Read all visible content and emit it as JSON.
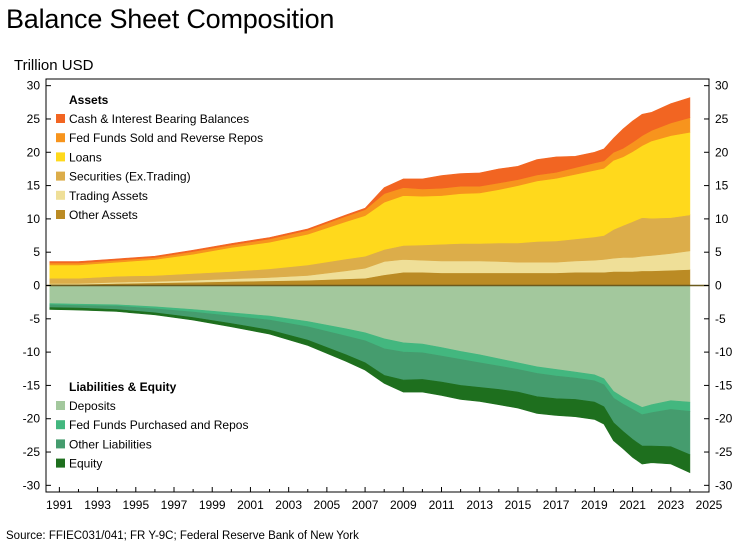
{
  "header": {
    "title": "Balance Sheet Composition",
    "units": "Trillion USD"
  },
  "footer": {
    "source": "Source: FFIEC031/041; FR Y-9C; Federal Reserve Bank of New York"
  },
  "colors": {
    "cash": "#f26522",
    "fed_funds_sold": "#f7941d",
    "loans": "#ffd91c",
    "securities": "#dcad4a",
    "trading": "#efdf98",
    "other_assets": "#bb8b24",
    "deposits": "#a3c89d",
    "fed_funds_purchased": "#43b77f",
    "other_liabilities": "#459c6e",
    "equity": "#1e6f1e"
  },
  "chart_data": {
    "type": "area",
    "stacked": true,
    "ylim": [
      -31,
      31
    ],
    "yticks": [
      30,
      25,
      20,
      15,
      10,
      5,
      0,
      -5,
      -10,
      -15,
      -20,
      -25,
      -30
    ],
    "xlim": [
      1990.3,
      2025
    ],
    "xticks": [
      "1991",
      "1993",
      "1995",
      "1997",
      "1999",
      "2001",
      "2003",
      "2005",
      "2007",
      "2009",
      "2011",
      "2013",
      "2015",
      "2017",
      "2019",
      "2021",
      "2023",
      "2025"
    ],
    "grid": false,
    "x": [
      1990.5,
      1992,
      1994,
      1996,
      1998,
      2000,
      2002,
      2004,
      2006,
      2007,
      2008,
      2009,
      2010,
      2011,
      2012,
      2013,
      2014,
      2015,
      2016,
      2017,
      2018,
      2019,
      2019.5,
      2020,
      2020.5,
      2021,
      2021.5,
      2022,
      2023,
      2024
    ],
    "legends": [
      {
        "heading": "Assets",
        "position": "top-left",
        "series": [
          "Cash & Interest Bearing Balances",
          "Fed Funds Sold and Reverse Repos",
          "Loans",
          "Securities (Ex.Trading)",
          "Trading Assets",
          "Other Assets"
        ]
      },
      {
        "heading": "Liabilities & Equity",
        "position": "bottom-left",
        "series": [
          "Deposits",
          "Fed Funds Purchased and Repos",
          "Other Liabilities",
          "Equity"
        ]
      }
    ],
    "assets": [
      {
        "name": "Other Assets",
        "color": "#bb8b24",
        "values": [
          0.2,
          0.2,
          0.3,
          0.4,
          0.5,
          0.6,
          0.7,
          0.8,
          1.0,
          1.1,
          1.6,
          2.0,
          2.0,
          1.9,
          1.9,
          1.9,
          1.9,
          1.9,
          1.9,
          1.9,
          2.0,
          2.0,
          2.0,
          2.1,
          2.1,
          2.1,
          2.2,
          2.2,
          2.3,
          2.4
        ]
      },
      {
        "name": "Trading Assets",
        "color": "#efdf98",
        "values": [
          0.1,
          0.1,
          0.2,
          0.2,
          0.3,
          0.4,
          0.5,
          0.7,
          1.2,
          1.5,
          2.0,
          1.9,
          1.8,
          1.8,
          1.8,
          1.8,
          1.7,
          1.6,
          1.6,
          1.6,
          1.7,
          1.8,
          1.9,
          2.0,
          2.1,
          2.1,
          2.2,
          2.3,
          2.5,
          2.8
        ]
      },
      {
        "name": "Securities (Ex.Trading)",
        "color": "#dcad4a",
        "values": [
          0.8,
          0.8,
          0.9,
          0.9,
          1.0,
          1.1,
          1.3,
          1.6,
          1.8,
          1.8,
          1.8,
          2.1,
          2.3,
          2.5,
          2.6,
          2.6,
          2.8,
          2.9,
          3.1,
          3.2,
          3.3,
          3.5,
          3.6,
          4.3,
          4.8,
          5.4,
          5.8,
          5.6,
          5.4,
          5.4
        ]
      },
      {
        "name": "Loans",
        "color": "#ffd91c",
        "values": [
          2.0,
          2.0,
          2.1,
          2.4,
          2.9,
          3.6,
          4.0,
          4.6,
          5.6,
          6.1,
          7.1,
          7.5,
          7.3,
          7.3,
          7.5,
          7.6,
          8.0,
          8.6,
          9.1,
          9.4,
          9.7,
          10.0,
          10.1,
          10.4,
          10.3,
          10.5,
          10.8,
          11.6,
          12.3,
          12.4
        ]
      },
      {
        "name": "Fed Funds Sold and Reverse Repos",
        "color": "#f7941d",
        "values": [
          0.3,
          0.3,
          0.3,
          0.3,
          0.4,
          0.4,
          0.5,
          0.6,
          0.8,
          0.9,
          1.3,
          1.2,
          1.1,
          1.1,
          1.1,
          1.0,
          1.0,
          0.9,
          0.9,
          0.9,
          1.0,
          1.1,
          1.1,
          1.2,
          1.3,
          1.4,
          1.5,
          1.6,
          1.9,
          2.2
        ]
      },
      {
        "name": "Cash & Interest Bearing Balances",
        "color": "#f26522",
        "values": [
          0.2,
          0.2,
          0.2,
          0.2,
          0.2,
          0.2,
          0.2,
          0.2,
          0.2,
          0.2,
          0.9,
          1.3,
          1.5,
          1.9,
          1.9,
          2.0,
          2.1,
          2.0,
          2.3,
          2.3,
          1.7,
          1.6,
          1.8,
          2.1,
          2.9,
          3.2,
          3.2,
          2.7,
          2.9,
          3.0
        ]
      }
    ],
    "liabilities": [
      {
        "name": "Deposits",
        "color": "#a3c89d",
        "values": [
          -2.7,
          -2.8,
          -2.9,
          -3.2,
          -3.6,
          -4.1,
          -4.6,
          -5.4,
          -6.5,
          -7.1,
          -8.0,
          -8.6,
          -8.8,
          -9.3,
          -9.9,
          -10.4,
          -11.0,
          -11.6,
          -12.2,
          -12.6,
          -13.0,
          -13.4,
          -14.0,
          -15.9,
          -16.8,
          -17.6,
          -18.3,
          -17.9,
          -17.3,
          -17.5
        ]
      },
      {
        "name": "Fed Funds Purchased and Repos",
        "color": "#43b77f",
        "values": [
          -0.2,
          -0.2,
          -0.2,
          -0.3,
          -0.4,
          -0.5,
          -0.6,
          -0.8,
          -1.1,
          -1.2,
          -1.5,
          -1.4,
          -1.3,
          -1.3,
          -1.2,
          -1.2,
          -1.1,
          -1.0,
          -1.0,
          -1.0,
          -0.9,
          -0.9,
          -0.9,
          -1.0,
          -1.0,
          -1.0,
          -1.1,
          -1.2,
          -1.3,
          -1.4
        ]
      },
      {
        "name": "Other Liabilities",
        "color": "#459c6e",
        "values": [
          -0.4,
          -0.4,
          -0.5,
          -0.6,
          -0.8,
          -1.1,
          -1.5,
          -2.0,
          -2.8,
          -3.3,
          -4.0,
          -4.2,
          -4.0,
          -3.9,
          -3.9,
          -3.7,
          -3.5,
          -3.4,
          -3.5,
          -3.4,
          -3.2,
          -3.2,
          -3.3,
          -3.7,
          -4.1,
          -4.5,
          -4.7,
          -5.0,
          -5.6,
          -6.5
        ]
      },
      {
        "name": "Equity",
        "color": "#1e6f1e",
        "values": [
          -0.3,
          -0.3,
          -0.3,
          -0.3,
          -0.4,
          -0.5,
          -0.6,
          -0.8,
          -1.0,
          -1.1,
          -1.2,
          -1.8,
          -1.9,
          -2.0,
          -2.1,
          -2.1,
          -2.3,
          -2.4,
          -2.5,
          -2.5,
          -2.6,
          -2.6,
          -2.6,
          -2.7,
          -2.6,
          -2.7,
          -2.7,
          -2.5,
          -2.6,
          -2.7
        ]
      }
    ]
  }
}
